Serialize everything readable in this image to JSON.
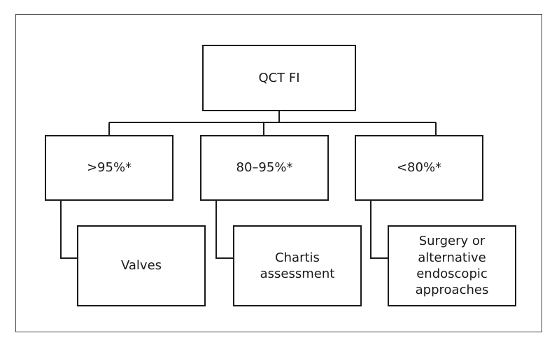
{
  "diagram": {
    "root": {
      "label": "QCT FI"
    },
    "branches": [
      {
        "label": ">95%*",
        "outcome": "Valves"
      },
      {
        "label": "80–95%*",
        "outcome": "Chartis\nassessment"
      },
      {
        "label": "<80%*",
        "outcome": "Surgery or\nalternative\nendoscopic\napproaches"
      }
    ]
  }
}
